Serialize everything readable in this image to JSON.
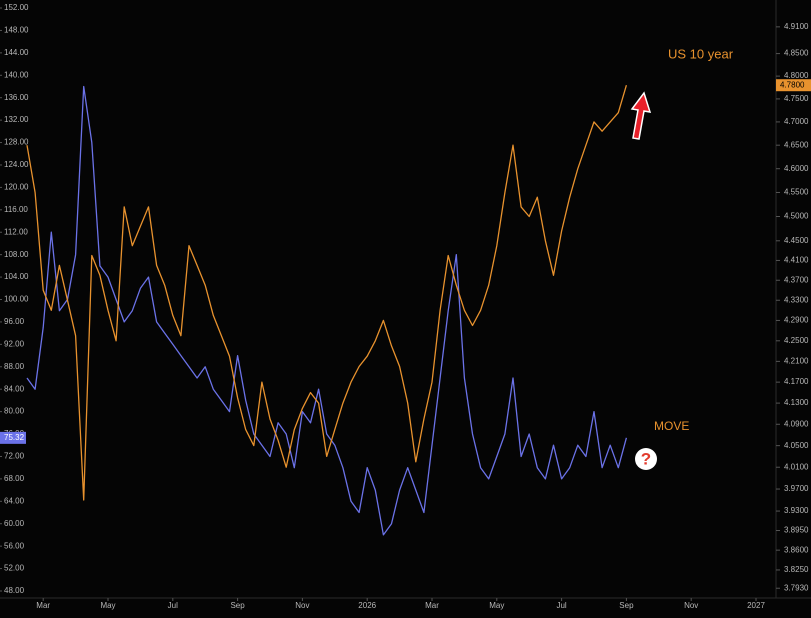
{
  "chart_data": {
    "type": "line",
    "categories": [
      null,
      null,
      "Mar",
      null,
      null,
      null,
      null,
      null,
      null,
      null,
      "May",
      null,
      null,
      null,
      null,
      null,
      null,
      null,
      "Jul",
      null,
      null,
      null,
      null,
      null,
      null,
      null,
      "Sep",
      null,
      null,
      null,
      null,
      null,
      null,
      null,
      "Nov",
      null,
      null,
      null,
      null,
      null,
      null,
      null,
      "2026",
      null,
      null,
      null,
      null,
      null,
      null,
      null,
      "Mar",
      null,
      null,
      null,
      null,
      null,
      null,
      null,
      "May",
      null,
      null,
      null,
      null,
      null,
      null,
      null,
      "Jul",
      null,
      null,
      null,
      null,
      null,
      null,
      null,
      "Sep",
      null,
      null,
      null,
      null,
      null,
      null,
      null,
      "Nov",
      null,
      null,
      null,
      null,
      null,
      null,
      null,
      "2027",
      null,
      null
    ],
    "series": [
      {
        "name": "MOVE",
        "color": "#6b72e8",
        "axis": "y",
        "last_value_label": "75.32",
        "values": [
          86,
          84,
          95,
          112,
          98,
          100,
          108,
          138,
          128,
          106,
          104,
          100,
          96,
          98,
          102,
          104,
          96,
          94,
          92,
          90,
          88,
          86,
          88,
          84,
          82,
          80,
          90,
          82,
          76,
          74,
          72,
          78,
          76,
          70,
          80,
          78,
          84,
          76,
          74,
          70,
          64,
          62,
          70,
          66,
          58,
          60,
          66,
          70,
          66,
          62,
          74,
          86,
          98,
          108,
          86,
          76,
          70,
          68,
          72,
          76,
          86,
          72,
          76,
          70,
          68,
          74,
          68,
          70,
          74,
          72,
          80,
          70,
          74,
          70,
          75.32,
          null,
          null,
          null,
          null,
          null,
          null,
          null,
          null,
          null,
          null,
          null,
          null,
          null,
          null,
          null,
          null,
          null,
          null
        ]
      },
      {
        "name": "US 10 year",
        "color": "#e8922e",
        "axis": "y2",
        "last_value_label": "4.7800",
        "values": [
          4.65,
          4.55,
          4.35,
          4.31,
          4.4,
          4.33,
          4.26,
          3.95,
          4.42,
          4.38,
          4.31,
          4.25,
          4.52,
          4.44,
          4.48,
          4.52,
          4.4,
          4.36,
          4.3,
          4.26,
          4.44,
          4.4,
          4.36,
          4.3,
          4.26,
          4.22,
          4.14,
          4.08,
          4.05,
          4.17,
          4.1,
          4.06,
          4.01,
          4.08,
          4.12,
          4.15,
          4.13,
          4.03,
          4.08,
          4.13,
          4.17,
          4.2,
          4.22,
          4.25,
          4.29,
          4.24,
          4.2,
          4.13,
          4.02,
          4.1,
          4.17,
          4.31,
          4.42,
          4.36,
          4.31,
          4.28,
          4.31,
          4.36,
          4.44,
          4.55,
          4.65,
          4.52,
          4.5,
          4.54,
          4.45,
          4.38,
          4.47,
          4.54,
          4.6,
          4.65,
          4.7,
          4.68,
          4.7,
          4.72,
          4.78,
          null,
          null,
          null,
          null,
          null,
          null,
          null,
          null,
          null,
          null,
          null,
          null,
          null,
          null,
          null,
          null,
          null,
          null
        ]
      }
    ],
    "ylim": [
      46.75,
      153.43
    ],
    "yticks": [
      {
        "value": 152,
        "label": "152.00"
      },
      {
        "value": 148,
        "label": "148.00"
      },
      {
        "value": 144,
        "label": "144.00"
      },
      {
        "value": 140,
        "label": "140.00"
      },
      {
        "value": 136,
        "label": "136.00"
      },
      {
        "value": 132,
        "label": "132.00"
      },
      {
        "value": 128,
        "label": "128.00"
      },
      {
        "value": 124,
        "label": "124.00"
      },
      {
        "value": 120,
        "label": "120.00"
      },
      {
        "value": 116,
        "label": "116.00"
      },
      {
        "value": 112,
        "label": "112.00"
      },
      {
        "value": 108,
        "label": "108.00"
      },
      {
        "value": 104,
        "label": "104.00"
      },
      {
        "value": 100,
        "label": "100.00"
      },
      {
        "value": 96,
        "label": "96.00"
      },
      {
        "value": 92,
        "label": "92.00"
      },
      {
        "value": 88,
        "label": "88.00"
      },
      {
        "value": 84,
        "label": "84.00"
      },
      {
        "value": 80,
        "label": "80.00"
      },
      {
        "value": 76,
        "label": "76.00"
      },
      {
        "value": 72,
        "label": "72.00"
      },
      {
        "value": 68,
        "label": "68.00"
      },
      {
        "value": 64,
        "label": "64.00"
      },
      {
        "value": 60,
        "label": "60.00"
      },
      {
        "value": 56,
        "label": "56.00"
      },
      {
        "value": 52,
        "label": "52.00"
      },
      {
        "value": 48,
        "label": "48.00"
      }
    ],
    "y2lim": [
      3.776,
      4.971
    ],
    "y2log": true,
    "y2ticks": [
      {
        "value": 4.91,
        "label": "4.9100"
      },
      {
        "value": 4.85,
        "label": "4.8500"
      },
      {
        "value": 4.8,
        "label": "4.8000"
      },
      {
        "value": 4.75,
        "label": "4.7500"
      },
      {
        "value": 4.7,
        "label": "4.7000"
      },
      {
        "value": 4.65,
        "label": "4.6500"
      },
      {
        "value": 4.6,
        "label": "4.6000"
      },
      {
        "value": 4.55,
        "label": "4.5500"
      },
      {
        "value": 4.5,
        "label": "4.5000"
      },
      {
        "value": 4.45,
        "label": "4.4500"
      },
      {
        "value": 4.41,
        "label": "4.4100"
      },
      {
        "value": 4.37,
        "label": "4.3700"
      },
      {
        "value": 4.33,
        "label": "4.3300"
      },
      {
        "value": 4.29,
        "label": "4.2900"
      },
      {
        "value": 4.25,
        "label": "4.2500"
      },
      {
        "value": 4.21,
        "label": "4.2100"
      },
      {
        "value": 4.17,
        "label": "4.1700"
      },
      {
        "value": 4.13,
        "label": "4.1300"
      },
      {
        "value": 4.09,
        "label": "4.0900"
      },
      {
        "value": 4.05,
        "label": "4.0500"
      },
      {
        "value": 4.01,
        "label": "4.0100"
      },
      {
        "value": 3.97,
        "label": "3.9700"
      },
      {
        "value": 3.93,
        "label": "3.9300"
      },
      {
        "value": 3.895,
        "label": "3.8950"
      },
      {
        "value": 3.86,
        "label": "3.8600"
      },
      {
        "value": 3.825,
        "label": "3.8250"
      },
      {
        "value": 3.793,
        "label": "3.7930"
      }
    ],
    "grid": false,
    "annotations": [
      {
        "text": "US 10 year",
        "color": "#e8922e"
      },
      {
        "text": "MOVE",
        "color": "#e8922e"
      },
      {
        "text": "?",
        "color": "#e23b2e"
      }
    ]
  }
}
